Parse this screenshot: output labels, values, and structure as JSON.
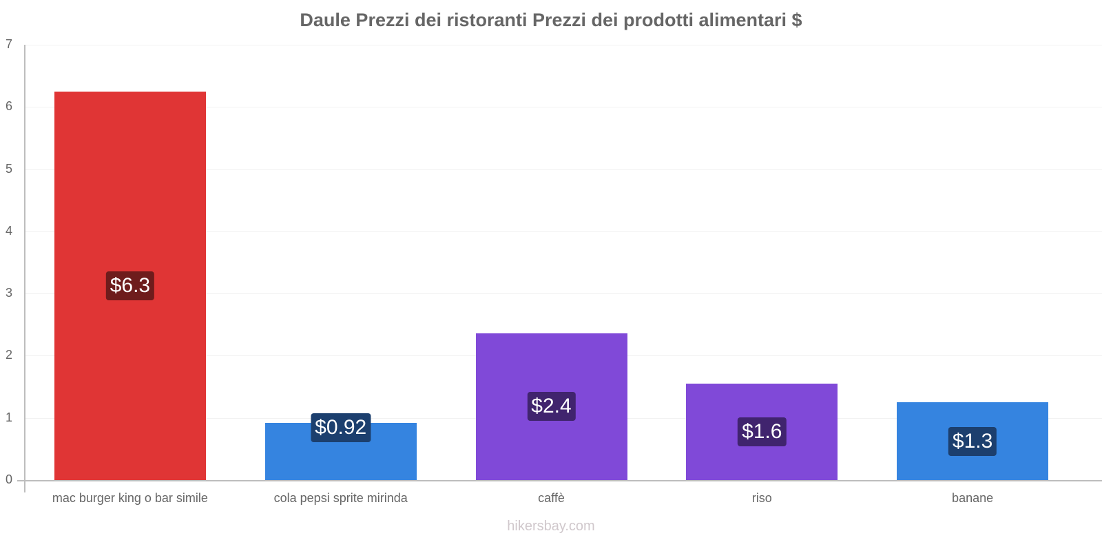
{
  "chart_data": {
    "type": "bar",
    "title": "Daule Prezzi dei ristoranti Prezzi dei prodotti alimentari $",
    "xlabel": "",
    "ylabel": "",
    "ylim": [
      0,
      7
    ],
    "yticks": [
      "0",
      "1",
      "2",
      "3",
      "4",
      "5",
      "6",
      "7"
    ],
    "grid": true,
    "legend": null,
    "categories": [
      "mac burger king o bar simile",
      "cola pepsi sprite mirinda",
      "caffè",
      "riso",
      "banane"
    ],
    "values": [
      6.25,
      0.92,
      2.36,
      1.55,
      1.25
    ],
    "data_labels": [
      "$6.3",
      "$0.92",
      "$2.4",
      "$1.6",
      "$1.3"
    ],
    "colors": [
      "#e03535",
      "#3584e0",
      "#8049d8",
      "#8049d8",
      "#3584e0"
    ],
    "label_colors": [
      "#6e1c1c",
      "#1c3f6e",
      "#40246e",
      "#40246e",
      "#1c3f6e"
    ]
  },
  "footer": {
    "watermark": "hikersbay.com"
  }
}
